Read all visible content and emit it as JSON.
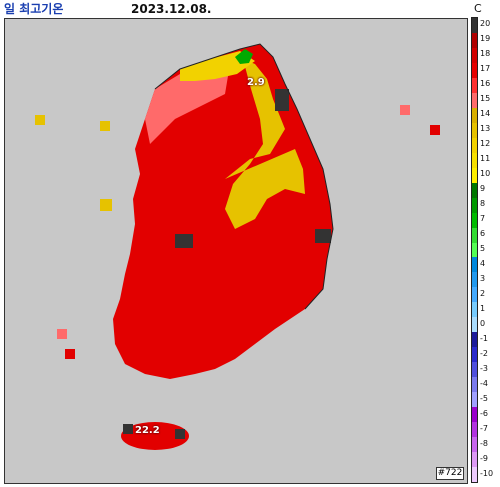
{
  "header": {
    "title": "일 최고기온",
    "date": "2023.12.08.",
    "unit": "C"
  },
  "map": {
    "id_label": "#722",
    "stations": [
      {
        "name": "north-east-station",
        "value": "2.9"
      },
      {
        "name": "jeju-station",
        "value": "22.2"
      }
    ]
  },
  "legend": {
    "ticks": [
      "20",
      "19",
      "18",
      "17",
      "16",
      "15",
      "14",
      "13",
      "12",
      "11",
      "10",
      "9",
      "8",
      "7",
      "6",
      "5",
      "4",
      "3",
      "2",
      "1",
      "0",
      "-1",
      "-2",
      "-3",
      "-4",
      "-5",
      "-6",
      "-7",
      "-8",
      "-9",
      "-10"
    ],
    "colors": {
      "20": "#333333",
      "19": "#b00000",
      "18": "#d20000",
      "17": "#e60000",
      "16": "#ff3030",
      "15": "#ff6a6a",
      "14": "#d9b000",
      "13": "#e6c200",
      "12": "#f2d200",
      "11": "#f7e000",
      "10": "#fff000",
      "9": "#007700",
      "8": "#009900",
      "7": "#00bb00",
      "6": "#33dd33",
      "5": "#55ff55",
      "4": "#0088dd",
      "3": "#2299ee",
      "2": "#44aaff",
      "1": "#77ccff",
      "0": "#aaddff",
      "-1": "#1a1a99",
      "-2": "#2a2acc",
      "-3": "#5050dd",
      "-4": "#7a7aee",
      "-5": "#a0a0ff",
      "-6": "#9900cc",
      "-7": "#b233e0",
      "-8": "#c866ee",
      "-9": "#dd99f5",
      "-10": "#eeccff"
    }
  }
}
